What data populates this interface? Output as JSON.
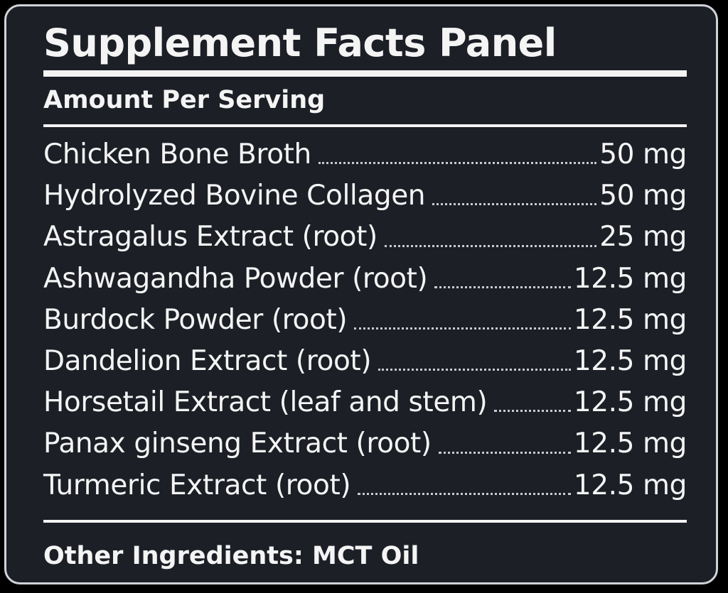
{
  "panel": {
    "title": "Supplement Facts Panel",
    "subheading": "Amount Per Serving",
    "ingredients": [
      {
        "name": "Chicken Bone Broth",
        "amount": "50 mg"
      },
      {
        "name": "Hydrolyzed Bovine Collagen",
        "amount": "50 mg"
      },
      {
        "name": "Astragalus Extract (root)",
        "amount": "25 mg"
      },
      {
        "name": "Ashwagandha Powder (root)",
        "amount": "12.5 mg"
      },
      {
        "name": "Burdock Powder (root)",
        "amount": "12.5 mg"
      },
      {
        "name": "Dandelion Extract (root)",
        "amount": "12.5 mg"
      },
      {
        "name": "Horsetail Extract (leaf and stem)",
        "amount": "12.5 mg"
      },
      {
        "name": "Panax ginseng Extract (root)",
        "amount": "12.5 mg"
      },
      {
        "name": "Turmeric Extract (root)",
        "amount": "12.5 mg"
      }
    ],
    "other_ingredients": "Other Ingredients: MCT Oil"
  },
  "colors": {
    "background": "#1c1f26",
    "text": "#f4f4f4",
    "border": "#cfd2d6"
  }
}
